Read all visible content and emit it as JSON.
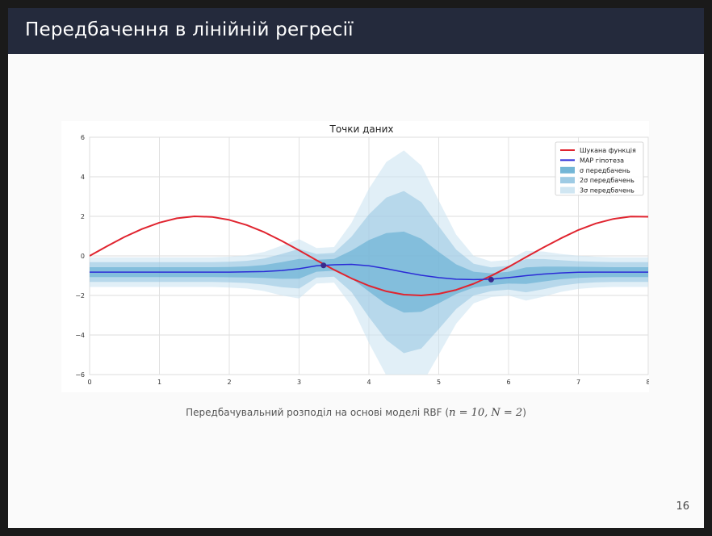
{
  "slide": {
    "title": "Передбачення в лінійній регресії",
    "caption_prefix": "Передбачувальний розподіл на основі моделі RBF (",
    "caption_math": "n = 10, N = 2",
    "caption_suffix": ")",
    "page_number": "16"
  },
  "chart_data": {
    "type": "line",
    "title": "Точки даних",
    "xlabel": "",
    "ylabel": "",
    "xlim": [
      0,
      8
    ],
    "ylim": [
      -6,
      6
    ],
    "xticks": [
      "0",
      "1",
      "2",
      "3",
      "4",
      "5",
      "6",
      "7",
      "8"
    ],
    "yticks": [
      "6",
      "4",
      "2",
      "0",
      "−2",
      "−4",
      "−6"
    ],
    "grid": true,
    "legend_position": "top-right",
    "x": [
      0.0,
      0.25,
      0.5,
      0.75,
      1.0,
      1.25,
      1.5,
      1.75,
      2.0,
      2.25,
      2.5,
      2.75,
      3.0,
      3.25,
      3.5,
      3.75,
      4.0,
      4.25,
      4.5,
      4.75,
      5.0,
      5.25,
      5.5,
      5.75,
      6.0,
      6.25,
      6.5,
      6.75,
      7.0,
      7.25,
      7.5,
      7.75,
      8.0
    ],
    "series": [
      {
        "name": "Шукана функція",
        "kind": "line",
        "color": "#e0242f",
        "values": [
          0.0,
          0.49,
          0.96,
          1.36,
          1.68,
          1.9,
          2.0,
          1.97,
          1.82,
          1.56,
          1.2,
          0.76,
          0.28,
          -0.22,
          -0.7,
          -1.14,
          -1.51,
          -1.79,
          -1.96,
          -2.0,
          -1.92,
          -1.72,
          -1.41,
          -1.01,
          -0.56,
          -0.06,
          0.43,
          0.89,
          1.31,
          1.64,
          1.87,
          1.99,
          1.98
        ]
      },
      {
        "name": "MAP гіпотеза",
        "kind": "line",
        "color": "#2b2bd6",
        "values": [
          -0.82,
          -0.82,
          -0.82,
          -0.82,
          -0.82,
          -0.82,
          -0.82,
          -0.82,
          -0.82,
          -0.81,
          -0.79,
          -0.74,
          -0.65,
          -0.5,
          -0.45,
          -0.43,
          -0.5,
          -0.65,
          -0.82,
          -0.98,
          -1.1,
          -1.18,
          -1.2,
          -1.18,
          -1.1,
          -1.0,
          -0.92,
          -0.86,
          -0.83,
          -0.82,
          -0.82,
          -0.82,
          -0.82
        ]
      },
      {
        "name": "σ передбачень",
        "kind": "band",
        "color": "#5aa9cf",
        "opacity": 0.55,
        "values": [
          0.25,
          0.25,
          0.25,
          0.25,
          0.25,
          0.25,
          0.25,
          0.25,
          0.26,
          0.28,
          0.33,
          0.42,
          0.5,
          0.3,
          0.3,
          0.7,
          1.3,
          1.8,
          2.05,
          1.85,
          1.3,
          0.75,
          0.4,
          0.3,
          0.3,
          0.42,
          0.38,
          0.32,
          0.28,
          0.26,
          0.25,
          0.25,
          0.25
        ]
      },
      {
        "name": "2σ передбачень",
        "kind": "band",
        "color": "#8dc2df",
        "opacity": 0.5,
        "values": [
          0.5,
          0.5,
          0.5,
          0.5,
          0.5,
          0.5,
          0.5,
          0.5,
          0.52,
          0.56,
          0.66,
          0.84,
          1.0,
          0.6,
          0.6,
          1.4,
          2.6,
          3.6,
          4.1,
          3.7,
          2.6,
          1.5,
          0.8,
          0.6,
          0.6,
          0.84,
          0.76,
          0.64,
          0.56,
          0.52,
          0.5,
          0.5,
          0.5
        ]
      },
      {
        "name": "3σ передбачень",
        "kind": "band",
        "color": "#c8e2f0",
        "opacity": 0.55,
        "values": [
          0.75,
          0.75,
          0.75,
          0.75,
          0.75,
          0.75,
          0.75,
          0.75,
          0.78,
          0.84,
          0.99,
          1.26,
          1.5,
          0.9,
          0.9,
          2.1,
          3.9,
          5.4,
          6.15,
          5.55,
          3.9,
          2.25,
          1.2,
          0.9,
          0.9,
          1.26,
          1.14,
          0.96,
          0.84,
          0.78,
          0.75,
          0.75,
          0.75
        ]
      }
    ],
    "points": {
      "x": [
        3.35,
        5.75
      ],
      "y": [
        -0.48,
        -1.2
      ],
      "color": "#3a2a8c"
    }
  }
}
